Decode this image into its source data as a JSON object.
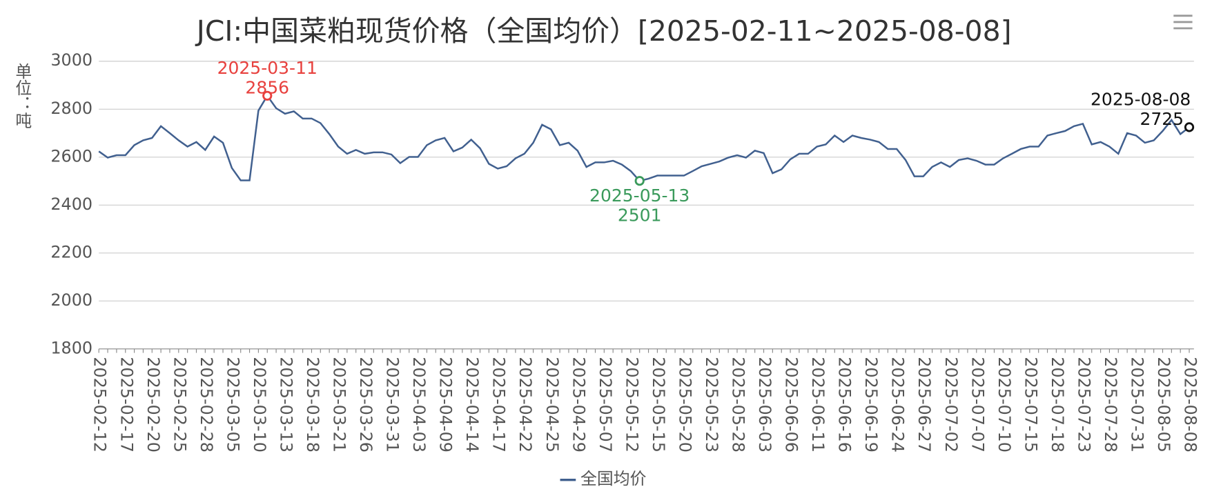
{
  "chart_data": {
    "type": "line",
    "title": "JCI:中国菜粕现货价格（全国均价）[2025-02-11~2025-08-08]",
    "y_label": "单位：吨",
    "categories": [
      "2025-02-12",
      null,
      null,
      "2025-02-17",
      null,
      null,
      "2025-02-20",
      null,
      null,
      "2025-02-25",
      null,
      null,
      "2025-02-28",
      null,
      null,
      "2025-03-05",
      null,
      null,
      "2025-03-10",
      null,
      null,
      "2025-03-13",
      null,
      null,
      "2025-03-18",
      null,
      null,
      "2025-03-21",
      null,
      null,
      "2025-03-26",
      null,
      null,
      "2025-03-31",
      null,
      null,
      "2025-04-03",
      null,
      null,
      "2025-04-09",
      null,
      null,
      "2025-04-14",
      null,
      null,
      "2025-04-17",
      null,
      null,
      "2025-04-22",
      null,
      null,
      "2025-04-25",
      null,
      null,
      "2025-04-29",
      null,
      null,
      "2025-05-07",
      null,
      null,
      "2025-05-12",
      null,
      null,
      "2025-05-15",
      null,
      null,
      "2025-05-20",
      null,
      null,
      "2025-05-23",
      null,
      null,
      "2025-05-28",
      null,
      null,
      "2025-06-03",
      null,
      null,
      "2025-06-06",
      null,
      null,
      "2025-06-11",
      null,
      null,
      "2025-06-16",
      null,
      null,
      "2025-06-19",
      null,
      null,
      "2025-06-24",
      null,
      null,
      "2025-06-27",
      null,
      null,
      "2025-07-02",
      null,
      null,
      "2025-07-07",
      null,
      null,
      "2025-07-10",
      null,
      null,
      "2025-07-15",
      null,
      null,
      "2025-07-18",
      null,
      null,
      "2025-07-23",
      null,
      null,
      "2025-07-28",
      null,
      null,
      "2025-07-31",
      null,
      null,
      "2025-08-05",
      null,
      null,
      "2025-08-08"
    ],
    "series": [
      {
        "name": "全国均价",
        "color": "#41608f",
        "values": [
          2624,
          2598,
          2608,
          2608,
          2650,
          2670,
          2680,
          2729,
          2700,
          2670,
          2644,
          2663,
          2630,
          2686,
          2660,
          2555,
          2503,
          2503,
          2794,
          2856,
          2804,
          2781,
          2791,
          2761,
          2761,
          2742,
          2696,
          2644,
          2614,
          2630,
          2614,
          2620,
          2620,
          2611,
          2575,
          2601,
          2601,
          2650,
          2670,
          2680,
          2624,
          2640,
          2673,
          2637,
          2572,
          2552,
          2562,
          2595,
          2614,
          2660,
          2735,
          2716,
          2650,
          2660,
          2627,
          2559,
          2578,
          2578,
          2585,
          2569,
          2542,
          2501,
          2510,
          2523,
          2523,
          2523,
          2523,
          2542,
          2562,
          2572,
          2582,
          2598,
          2608,
          2598,
          2627,
          2617,
          2533,
          2549,
          2591,
          2614,
          2614,
          2644,
          2653,
          2690,
          2663,
          2690,
          2680,
          2673,
          2663,
          2634,
          2634,
          2588,
          2520,
          2520,
          2559,
          2578,
          2559,
          2588,
          2595,
          2585,
          2569,
          2569,
          2595,
          2614,
          2634,
          2644,
          2644,
          2690,
          2700,
          2709,
          2729,
          2739,
          2653,
          2663,
          2644,
          2614,
          2700,
          2690,
          2660,
          2670,
          2709,
          2755,
          2696,
          2725
        ]
      }
    ],
    "ylim": [
      1800,
      3000
    ],
    "yticks": [
      1800,
      2000,
      2200,
      2400,
      2600,
      2800,
      3000
    ],
    "grid": true,
    "annotations": [
      {
        "text": "2025-03-11",
        "value": 2856,
        "color": "#e8413e"
      },
      {
        "text": "2025-05-13",
        "value": 2501,
        "color": "#3a9a5b"
      },
      {
        "text": "2025-08-08",
        "value": 2725,
        "color": "#111111"
      }
    ]
  }
}
